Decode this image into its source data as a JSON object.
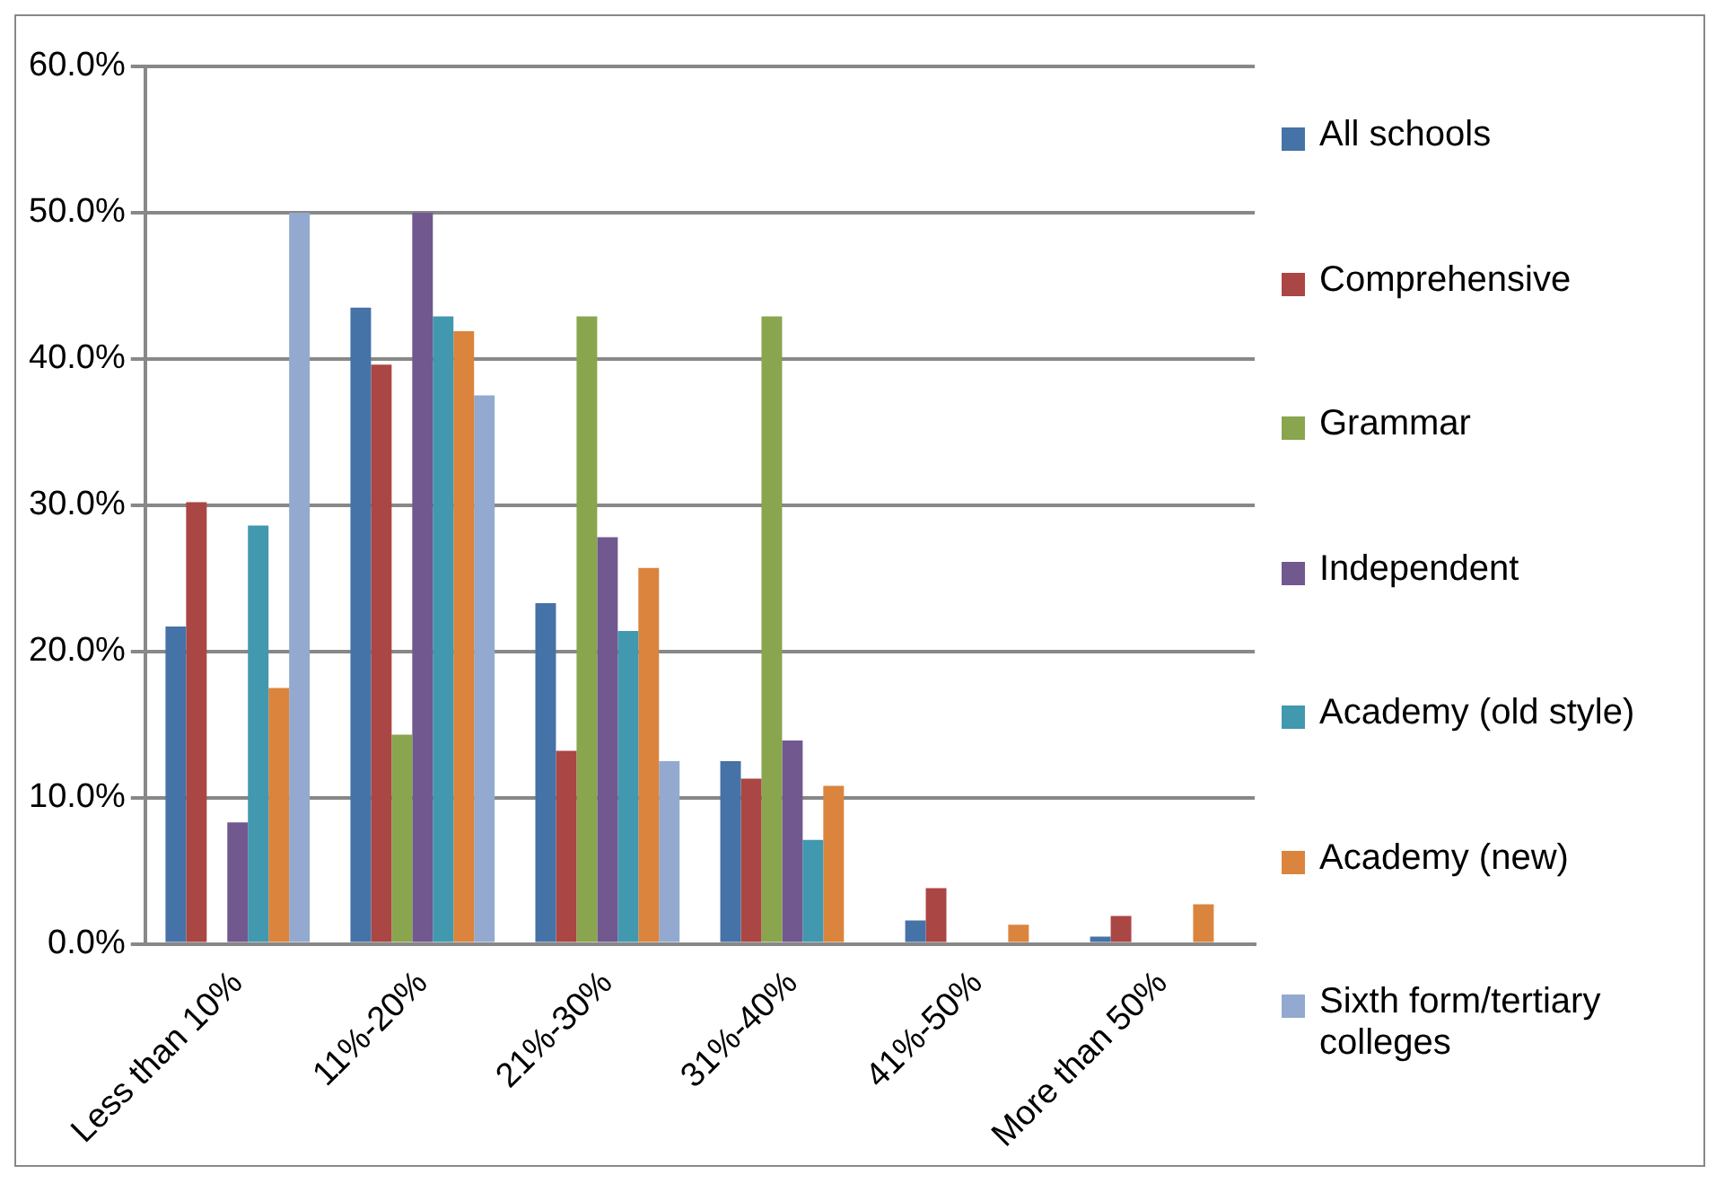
{
  "chart_data": {
    "type": "bar",
    "categories": [
      "Less than 10%",
      "11%-20%",
      "21%-30%",
      "31%-40%",
      "41%-50%",
      "More than 50%"
    ],
    "series": [
      {
        "name": "All schools",
        "color": "#4572a7",
        "values": [
          21.7,
          43.5,
          23.3,
          12.5,
          1.6,
          0.5
        ]
      },
      {
        "name": "Comprehensive",
        "color": "#aa4643",
        "values": [
          30.2,
          39.6,
          13.2,
          11.3,
          3.8,
          1.9
        ]
      },
      {
        "name": "Grammar",
        "color": "#89a54e",
        "values": [
          0,
          14.3,
          42.9,
          42.9,
          0,
          0
        ]
      },
      {
        "name": "Independent",
        "color": "#71588f",
        "values": [
          8.3,
          50.0,
          27.8,
          13.9,
          0,
          0
        ]
      },
      {
        "name": "Academy (old style)",
        "color": "#4198af",
        "values": [
          28.6,
          42.9,
          21.4,
          7.1,
          0,
          0
        ]
      },
      {
        "name": "Academy (new)",
        "color": "#db843d",
        "values": [
          17.5,
          41.9,
          25.7,
          10.8,
          1.3,
          2.7
        ]
      },
      {
        "name": "Sixth form/tertiary colleges",
        "color": "#93a9cf",
        "values": [
          50.0,
          37.5,
          12.5,
          0,
          0,
          0
        ]
      }
    ],
    "ylim": [
      0,
      60
    ],
    "yticks": [
      {
        "value": 0,
        "label": "0.0%"
      },
      {
        "value": 10,
        "label": "10.0%"
      },
      {
        "value": 20,
        "label": "20.0%"
      },
      {
        "value": 30,
        "label": "30.0%"
      },
      {
        "value": 40,
        "label": "40.0%"
      },
      {
        "value": 50,
        "label": "50.0%"
      },
      {
        "value": 60,
        "label": "60.0%"
      }
    ],
    "grid": "y",
    "legend": "right"
  }
}
